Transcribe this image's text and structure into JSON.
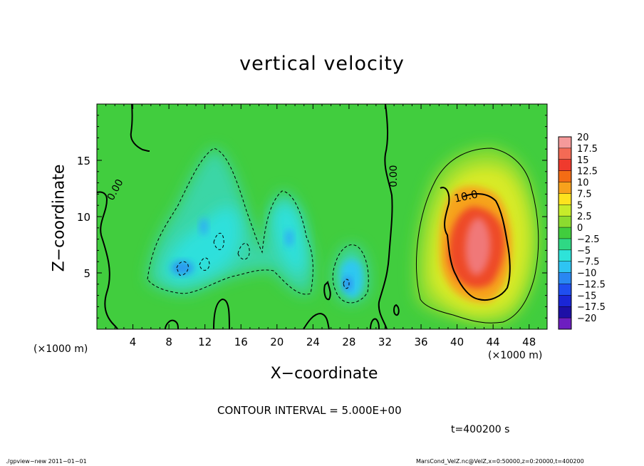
{
  "chart_data": {
    "type": "heatmap",
    "title": "vertical velocity",
    "xlabel": "X−coordinate",
    "ylabel": "Z−coordinate",
    "x_unit_label_left": "(×1000 m)",
    "x_unit_label_right": "(×1000 m)",
    "xlim": [
      0,
      50
    ],
    "ylim": [
      0,
      20
    ],
    "xticks": [
      "4",
      "8",
      "12",
      "16",
      "20",
      "24",
      "28",
      "32",
      "36",
      "40",
      "44",
      "48"
    ],
    "yticks": [
      "5",
      "10",
      "15"
    ],
    "contour_interval_text": "CONTOUR INTERVAL = 5.000E+00",
    "contour_labels": [
      "0.00",
      "0.00",
      "10.0"
    ],
    "colorbar": {
      "labels": [
        "20",
        "17.5",
        "15",
        "12.5",
        "10",
        "7.5",
        "5",
        "2.5",
        "0",
        "−2.5",
        "−5",
        "−7.5",
        "−10",
        "−12.5",
        "−15",
        "−17.5",
        "−20"
      ],
      "colors": [
        "#f59a9a",
        "#f36a55",
        "#ef3a2d",
        "#f36c14",
        "#f7a21c",
        "#fde31e",
        "#c7ec2a",
        "#8cdb2f",
        "#41cd3e",
        "#2fd884",
        "#2ee3d9",
        "#2ec4f3",
        "#2987f2",
        "#1f4ef0",
        "#1a26d6",
        "#1d10a6",
        "#6d1ec0"
      ]
    },
    "features": [
      {
        "name": "updraft core",
        "x": 42,
        "z": 8,
        "max": 17.5
      },
      {
        "name": "downdraft",
        "x": 10,
        "z": 6,
        "min": -12.5
      },
      {
        "name": "downdraft",
        "x": 28,
        "z": 4,
        "min": -10
      }
    ],
    "grid": false,
    "legend": "right colorbar"
  },
  "time_label": "t=400200 s",
  "footer": {
    "left": "./gpview−new   2011−01−01",
    "right": "MarsCond_VelZ.nc@VelZ,x=0:50000,z=0:20000,t=400200"
  }
}
